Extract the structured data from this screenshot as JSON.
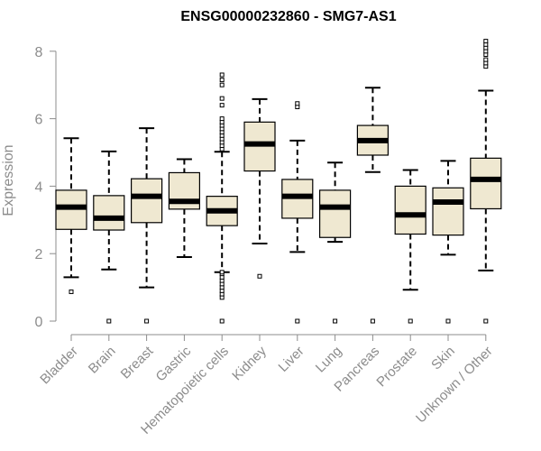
{
  "chart_data": {
    "type": "box",
    "title": "ENSG00000232860 - SMG7-AS1",
    "xlabel": "",
    "ylabel": "Expression",
    "ylim": [
      0,
      8
    ],
    "yticks": [
      0,
      2,
      4,
      6,
      8
    ],
    "grid": false,
    "legend": "none",
    "colors": {
      "box_fill": "#efe8d1",
      "stroke": "#000000",
      "axis": "#8c8c8c"
    },
    "categories": [
      "Bladder",
      "Brain",
      "Breast",
      "Gastric",
      "Hematopoietic cells",
      "Kidney",
      "Liver",
      "Lung",
      "Pancreas",
      "Prostate",
      "Skin",
      "Unknown / Other"
    ],
    "boxes": [
      {
        "name": "Bladder",
        "whisker_low": 1.3,
        "q1": 2.72,
        "median": 3.38,
        "q3": 3.88,
        "whisker_high": 5.42,
        "outliers": [
          0.87
        ]
      },
      {
        "name": "Brain",
        "whisker_low": 1.53,
        "q1": 2.7,
        "median": 3.05,
        "q3": 3.72,
        "whisker_high": 5.03,
        "outliers": [
          0.0
        ]
      },
      {
        "name": "Breast",
        "whisker_low": 1.0,
        "q1": 2.92,
        "median": 3.7,
        "q3": 4.22,
        "whisker_high": 5.72,
        "outliers": [
          0.0
        ]
      },
      {
        "name": "Gastric",
        "whisker_low": 1.9,
        "q1": 3.32,
        "median": 3.55,
        "q3": 4.4,
        "whisker_high": 4.8,
        "outliers": []
      },
      {
        "name": "Hematopoietic cells",
        "whisker_low": 1.45,
        "q1": 2.83,
        "median": 3.27,
        "q3": 3.7,
        "whisker_high": 5.02,
        "outliers": [
          0.0,
          0.7,
          0.8,
          0.9,
          1.0,
          1.1,
          1.2,
          1.3,
          1.4,
          1.45,
          5.1,
          5.2,
          5.3,
          5.4,
          5.5,
          5.6,
          5.7,
          5.8,
          5.9,
          6.0,
          6.4,
          6.6,
          7.0,
          7.15,
          7.3
        ]
      },
      {
        "name": "Kidney",
        "whisker_low": 2.3,
        "q1": 4.45,
        "median": 5.25,
        "q3": 5.9,
        "whisker_high": 6.58,
        "outliers": [
          1.33
        ]
      },
      {
        "name": "Liver",
        "whisker_low": 2.05,
        "q1": 3.05,
        "median": 3.7,
        "q3": 4.2,
        "whisker_high": 5.35,
        "outliers": [
          0.0,
          6.35,
          6.45
        ]
      },
      {
        "name": "Lung",
        "whisker_low": 2.35,
        "q1": 2.48,
        "median": 3.38,
        "q3": 3.88,
        "whisker_high": 4.7,
        "outliers": [
          0.0
        ]
      },
      {
        "name": "Pancreas",
        "whisker_low": 4.42,
        "q1": 4.92,
        "median": 5.35,
        "q3": 5.8,
        "whisker_high": 6.92,
        "outliers": [
          0.0
        ]
      },
      {
        "name": "Prostate",
        "whisker_low": 0.93,
        "q1": 2.58,
        "median": 3.15,
        "q3": 4.0,
        "whisker_high": 4.48,
        "outliers": [
          0.0
        ]
      },
      {
        "name": "Skin",
        "whisker_low": 1.97,
        "q1": 2.55,
        "median": 3.53,
        "q3": 3.95,
        "whisker_high": 4.75,
        "outliers": [
          0.0
        ]
      },
      {
        "name": "Unknown / Other",
        "whisker_low": 1.5,
        "q1": 3.33,
        "median": 4.2,
        "q3": 4.83,
        "whisker_high": 6.83,
        "outliers": [
          0.0,
          7.55,
          7.65,
          7.75,
          7.9,
          8.0,
          8.1,
          8.2,
          8.3
        ]
      }
    ]
  }
}
